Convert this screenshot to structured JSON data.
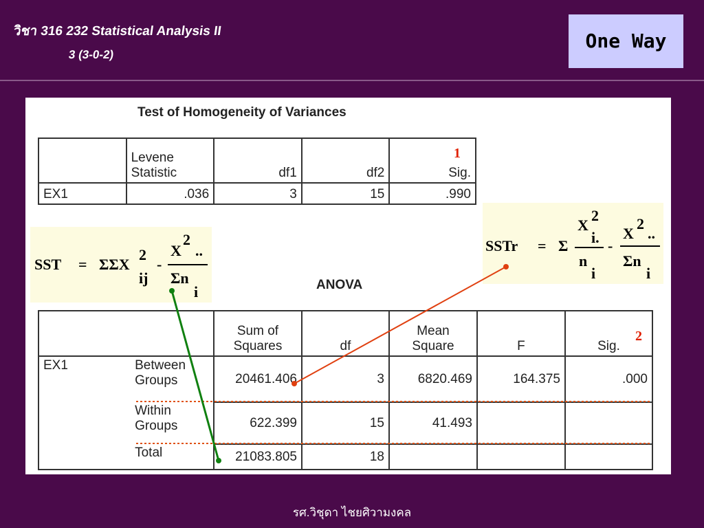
{
  "header": {
    "title": "วิชา 316 232 Statistical Analysis II",
    "subtitle": "3 (3-0-2)",
    "badge": "One Way"
  },
  "homogeneity": {
    "title": "Test of Homogeneity of Variances",
    "marker": "1",
    "columns": [
      null,
      "Levene Statistic",
      "df1",
      "df2",
      "Sig."
    ],
    "rows": [
      [
        "EX1",
        ".036",
        "3",
        "15",
        ".990"
      ]
    ]
  },
  "sst": {
    "lhs": "SST",
    "eq": "=",
    "sum": "ΣΣX",
    "sum_exp": "2",
    "sum_sub": "ij",
    "minus": "-",
    "num": "X",
    "num_exp": "2",
    "num_sub": "..",
    "den": "Σn",
    "den_sub": "i"
  },
  "sstr": {
    "lhs": "SSTr",
    "eq": "=",
    "sum": "Σ",
    "t1_num": "X",
    "t1_exp": "2",
    "t1_sub": "i.",
    "t1_den": "n",
    "t1_den_sub": "i",
    "minus": "-",
    "t2_num": "X",
    "t2_exp": "2",
    "t2_sub": "..",
    "t2_den": "Σn",
    "t2_den_sub": "i"
  },
  "anova": {
    "title": "ANOVA",
    "marker": "2",
    "columns": [
      null,
      null,
      "Sum of Squares",
      "df",
      "Mean Square",
      "F",
      "Sig."
    ],
    "rows": [
      [
        "EX1",
        "Between Groups",
        "20461.406",
        "3",
        "6820.469",
        "164.375",
        ".000"
      ],
      [
        null,
        "Within Groups",
        "622.399",
        "15",
        "41.493",
        null,
        null
      ],
      [
        null,
        "Total",
        "21083.805",
        "18",
        null,
        null,
        null
      ]
    ]
  },
  "footer": {
    "author": "รศ.วิชุดา ไชยศิวามงคล"
  }
}
